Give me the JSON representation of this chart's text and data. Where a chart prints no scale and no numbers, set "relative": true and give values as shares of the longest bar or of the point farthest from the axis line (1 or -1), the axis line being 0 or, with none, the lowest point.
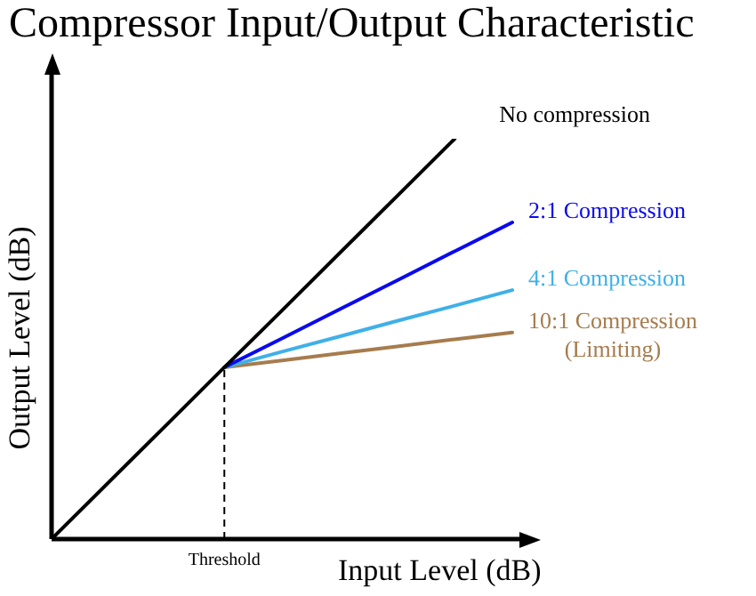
{
  "chart_data": {
    "type": "line",
    "title": "Compressor Input/Output Characteristic",
    "xlabel": "Input Level (dB)",
    "ylabel": "Output Level (dB)",
    "relative": true,
    "legend": false,
    "marker": "none",
    "line_style": "solid",
    "categories": [
      null,
      null,
      null,
      null,
      null,
      null,
      null,
      null,
      null
    ],
    "annotations": [
      "Threshold"
    ],
    "series": [
      {
        "name": "No compression",
        "color": "#000000",
        "values": [
          0,
          0.143,
          0.286,
          0.429,
          0.571,
          0.714,
          0.857,
          1,
          null
        ]
      },
      {
        "name": "2:1 Compression",
        "color": "#0a0aee",
        "values": [
          null,
          null,
          null,
          0.429,
          0.501,
          0.574,
          0.646,
          0.719,
          0.791
        ]
      },
      {
        "name": "4:1 Compression",
        "color": "#3fb0e8",
        "values": [
          null,
          null,
          null,
          0.429,
          0.468,
          0.506,
          0.545,
          0.583,
          0.622
        ]
      },
      {
        "name": "10:1 Compression (Limiting)",
        "color": "#a67c4e",
        "values": [
          null,
          null,
          null,
          0.429,
          0.446,
          0.464,
          0.481,
          0.499,
          0.516
        ]
      }
    ]
  }
}
